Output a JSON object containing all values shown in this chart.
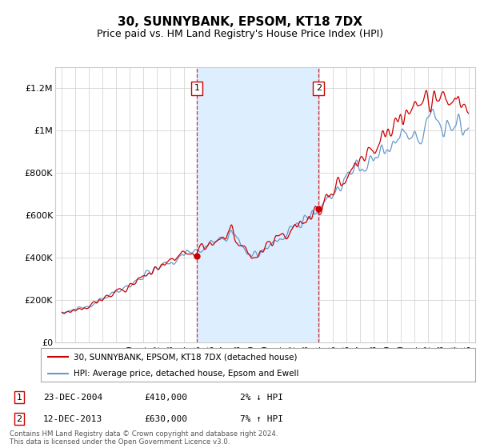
{
  "title": "30, SUNNYBANK, EPSOM, KT18 7DX",
  "subtitle": "Price paid vs. HM Land Registry's House Price Index (HPI)",
  "ylabel_ticks": [
    "£0",
    "£200K",
    "£400K",
    "£600K",
    "£800K",
    "£1M",
    "£1.2M"
  ],
  "ytick_values": [
    0,
    200000,
    400000,
    600000,
    800000,
    1000000,
    1200000
  ],
  "ylim": [
    0,
    1300000
  ],
  "sale1_date": "23-DEC-2004",
  "sale1_price": 410000,
  "sale1_hpi_diff": "2% ↓ HPI",
  "sale1_year": 2004.97,
  "sale2_date": "12-DEC-2013",
  "sale2_price": 630000,
  "sale2_hpi_diff": "7% ↑ HPI",
  "sale2_year": 2013.95,
  "legend_line1": "30, SUNNYBANK, EPSOM, KT18 7DX (detached house)",
  "legend_line2": "HPI: Average price, detached house, Epsom and Ewell",
  "footer": "Contains HM Land Registry data © Crown copyright and database right 2024.\nThis data is licensed under the Open Government Licence v3.0.",
  "line_color": "#cc0000",
  "hpi_color": "#6699cc",
  "shade_color": "#ddeeff",
  "background_color": "#ffffff",
  "grid_color": "#cccccc"
}
